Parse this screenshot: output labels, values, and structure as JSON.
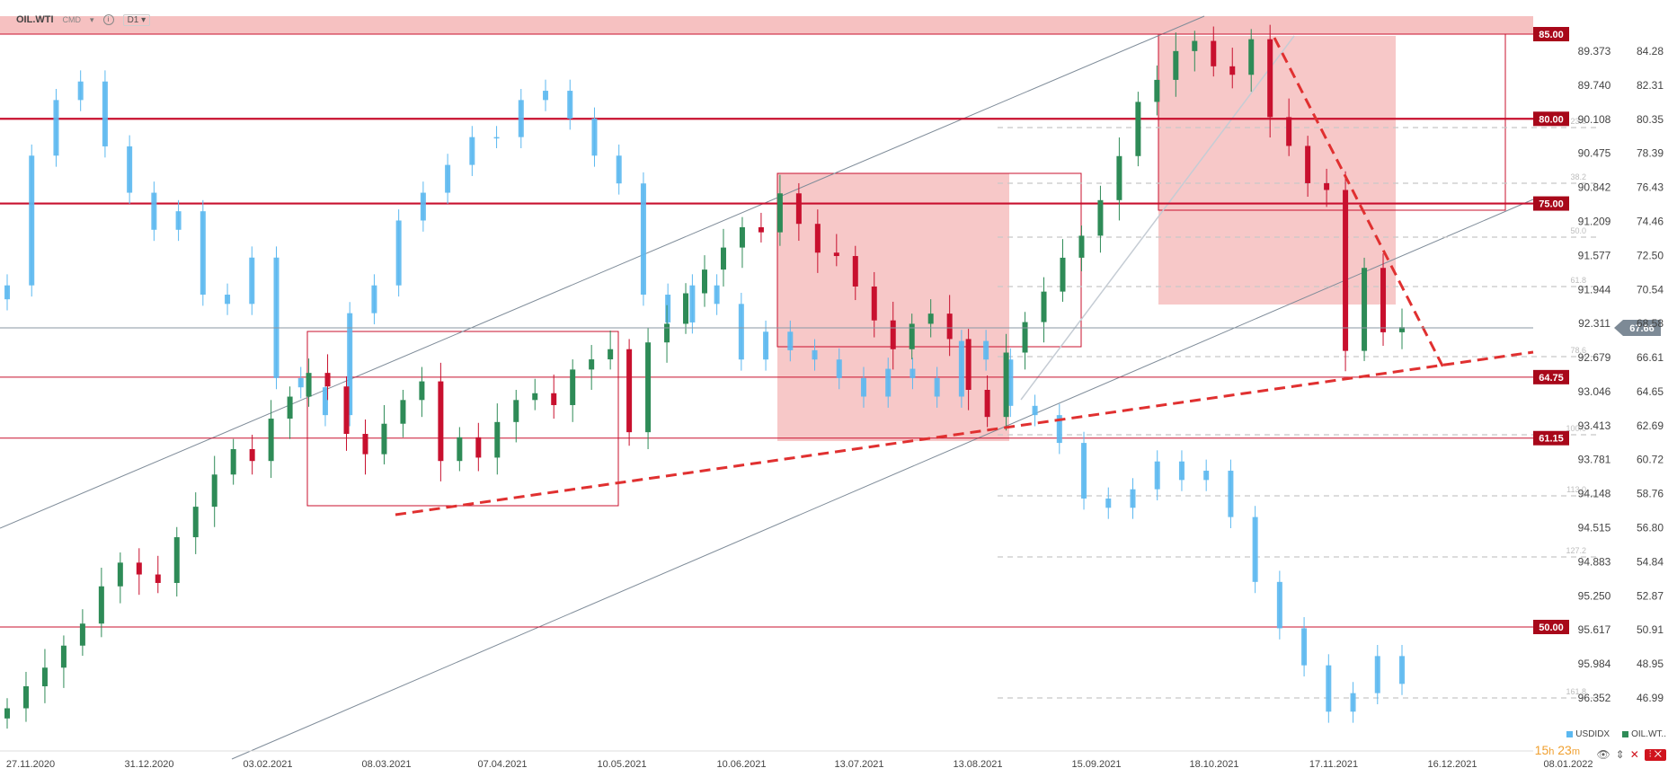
{
  "header": {
    "symbol": "OIL.WTI",
    "market": "CMD",
    "timeframe": "D1"
  },
  "legend": {
    "series1": "USDIDX",
    "series2": "OIL.WT.."
  },
  "timer": {
    "hours": "15",
    "h": "h",
    "minutes": "23",
    "m": "m"
  },
  "colors": {
    "up": "#2e8b57",
    "down": "#c8102e",
    "usdidx": "#5bb8f0",
    "level": "#c8102e",
    "zone": "#f4b6b6"
  },
  "chart_data": {
    "type": "candlestick",
    "title": "",
    "x_tick_labels": [
      "27.11.2020",
      "31.12.2020",
      "03.02.2021",
      "08.03.2021",
      "07.04.2021",
      "10.05.2021",
      "10.06.2021",
      "13.07.2021",
      "13.08.2021",
      "15.09.2021",
      "18.10.2021",
      "17.11.2021",
      "16.12.2021",
      "08.01.2022"
    ],
    "y_right_ticks": [
      "84.28",
      "82.31",
      "80.35",
      "78.39",
      "76.43",
      "74.46",
      "72.50",
      "70.54",
      "68.58",
      "66.61",
      "64.65",
      "62.69",
      "60.72",
      "58.76",
      "56.80",
      "54.84",
      "52.87",
      "50.91",
      "48.95",
      "46.99"
    ],
    "y_left_ticks": [
      "89.373",
      "89.740",
      "90.108",
      "90.475",
      "90.842",
      "91.209",
      "91.577",
      "91.944",
      "92.311",
      "92.679",
      "93.046",
      "93.413",
      "93.781",
      "94.148",
      "94.515",
      "94.883",
      "95.250",
      "95.617",
      "95.984",
      "96.352"
    ],
    "oil_ylim": [
      45.0,
      86.0
    ],
    "usd_ylim": [
      89.1,
      96.6
    ],
    "levels": [
      85.0,
      80.0,
      75.0,
      64.75,
      61.15,
      50.0
    ],
    "level_labels": [
      "85.00",
      "80.00",
      "75.00",
      "64.75",
      "61.15",
      "50.00"
    ],
    "current_price": "67.66",
    "fib_labels": [
      "23.6",
      "38.2",
      "50.0",
      "61.8",
      "78.6",
      "100.0",
      "113.0",
      "127.2",
      "161.8"
    ],
    "oil_ohlc_approx": {
      "start_date": "27.11.2020",
      "close": [
        45.2,
        46.5,
        47.6,
        48.9,
        50.2,
        52.4,
        53.8,
        53.1,
        52.6,
        55.3,
        57.1,
        59.0,
        60.5,
        59.8,
        62.3,
        63.6,
        65.0,
        64.2,
        61.4,
        60.2,
        62.0,
        63.4,
        64.5,
        59.8,
        61.2,
        60.0,
        62.1,
        63.4,
        63.8,
        63.1,
        65.2,
        65.8,
        66.4,
        61.5,
        66.8,
        67.9,
        69.7,
        71.1,
        72.4,
        73.6,
        73.3,
        75.6,
        73.8,
        72.1,
        71.9,
        70.1,
        68.1,
        66.4,
        67.9,
        68.5,
        67.0,
        64.0,
        62.4,
        66.2,
        68.0,
        69.8,
        71.8,
        73.1,
        75.2,
        77.8,
        81.0,
        82.3,
        84.0,
        84.6,
        83.1,
        82.6,
        84.7,
        80.1,
        78.4,
        76.2,
        75.8,
        66.3,
        71.2,
        67.4,
        67.7
      ],
      "usdidx_close": [
        91.9,
        90.5,
        89.9,
        89.7,
        90.4,
        90.9,
        91.3,
        91.1,
        92.0,
        92.1,
        91.6,
        92.9,
        93.0,
        93.3,
        92.2,
        91.9,
        91.2,
        90.9,
        90.6,
        90.3,
        90.3,
        89.9,
        89.8,
        90.1,
        90.5,
        90.8,
        92.0,
        92.3,
        91.9,
        92.1,
        92.7,
        92.4,
        92.6,
        92.7,
        92.9,
        93.1,
        92.8,
        92.9,
        93.1,
        92.5,
        92.7,
        93.2,
        93.3,
        93.6,
        94.2,
        94.3,
        94.1,
        93.8,
        94.0,
        93.9,
        94.4,
        95.1,
        95.6,
        96.0,
        96.5,
        96.3,
        95.9,
        96.2
      ]
    }
  }
}
